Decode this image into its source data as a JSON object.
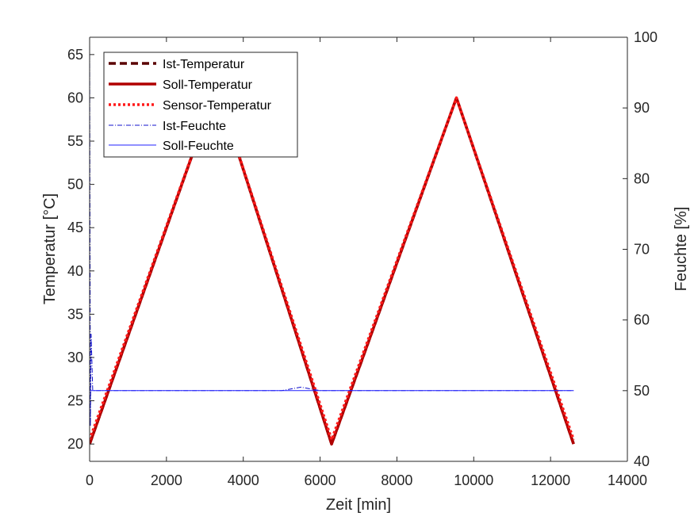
{
  "chart_data": {
    "type": "line",
    "title": "",
    "xlabel": "Zeit [min]",
    "ylabel_left": "Temperatur [°C]",
    "ylabel_right": "Feuchte [%]",
    "xlim": [
      0,
      14000
    ],
    "ylim_left": [
      18,
      67
    ],
    "ylim_right": [
      40,
      100
    ],
    "x_ticks": [
      "0",
      "2000",
      "4000",
      "6000",
      "8000",
      "10000",
      "12000",
      "14000"
    ],
    "y_left_ticks": [
      "20",
      "25",
      "30",
      "35",
      "40",
      "45",
      "50",
      "55",
      "60",
      "65"
    ],
    "y_right_ticks": [
      "40",
      "50",
      "60",
      "70",
      "80",
      "90",
      "100"
    ],
    "grid": false,
    "legend_position": "top-left",
    "colors": {
      "ist_temperatur": "#5a0000",
      "soll_temperatur": "#b00000",
      "sensor_temperatur": "#ff1a1a",
      "ist_feuchte": "#1010cc",
      "soll_feuchte": "#2020ff"
    },
    "series": [
      {
        "name": "Ist-Temperatur",
        "axis": "left",
        "x": [
          0,
          3200,
          3400,
          6300,
          9550,
          12600
        ],
        "y": [
          20,
          60,
          60,
          20,
          60,
          20
        ]
      },
      {
        "name": "Soll-Temperatur",
        "axis": "left",
        "x": [
          0,
          3200,
          3400,
          6300,
          9550,
          12600
        ],
        "y": [
          20,
          60,
          60,
          20,
          60,
          20
        ]
      },
      {
        "name": "Sensor-Temperatur",
        "axis": "left",
        "x": [
          0,
          3200,
          3400,
          6300,
          9550,
          12600
        ],
        "y": [
          20.5,
          60,
          60,
          20.5,
          60,
          20.5
        ]
      },
      {
        "name": "Ist-Feuchte",
        "axis": "right",
        "x": [
          0,
          20,
          40,
          80,
          200,
          1000,
          2000,
          3000,
          4000,
          5000,
          5500,
          6000,
          7000,
          8000,
          9000,
          10000,
          11000,
          12000,
          12600
        ],
        "y": [
          100,
          45,
          58,
          50,
          50,
          50,
          50,
          50,
          50,
          50,
          50.5,
          50,
          50,
          50,
          50,
          50,
          50,
          50,
          50
        ]
      },
      {
        "name": "Soll-Feuchte",
        "axis": "right",
        "x": [
          0,
          12600
        ],
        "y": [
          50,
          50
        ]
      }
    ]
  }
}
